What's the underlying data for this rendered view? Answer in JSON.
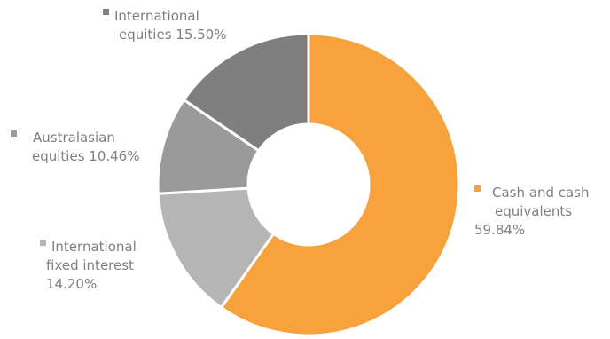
{
  "chart_data": {
    "type": "pie",
    "donut": true,
    "title": "",
    "categories": [
      "Cash and cash equivalents",
      "International fixed interest",
      "Australasian equities",
      "International equities"
    ],
    "values": [
      59.84,
      14.2,
      10.46,
      15.5
    ],
    "colors": [
      "#f7a23c",
      "#b5b5b5",
      "#9a9a9a",
      "#7f7f7f"
    ],
    "labels": [
      {
        "lines": [
          "Cash and cash",
          "equivalents",
          "59.84%"
        ]
      },
      {
        "lines": [
          "International",
          "fixed interest",
          "14.20%"
        ]
      },
      {
        "lines": [
          "Australasian",
          "equities 10.46%"
        ]
      },
      {
        "lines": [
          "International",
          "equities 15.50%"
        ]
      }
    ],
    "legend": "none"
  }
}
